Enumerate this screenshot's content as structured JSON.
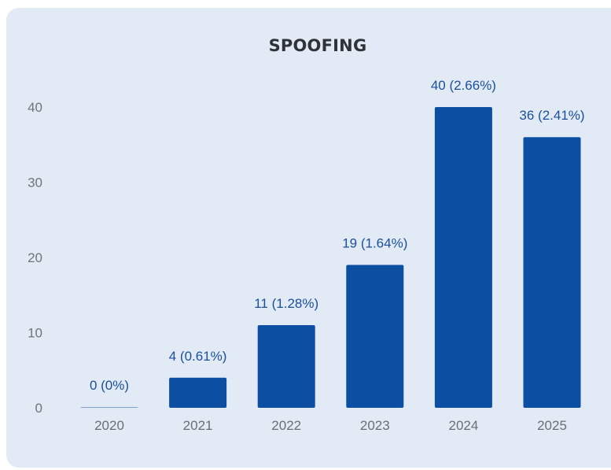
{
  "chart_data": {
    "type": "bar",
    "title": "SPOOFING",
    "xlabel": "",
    "ylabel": "",
    "categories": [
      "2020",
      "2021",
      "2022",
      "2023",
      "2024",
      "2025"
    ],
    "values": [
      0,
      4,
      11,
      19,
      40,
      36
    ],
    "data_labels": [
      "0 (0%)",
      "4 (0.61%)",
      "11 (1.28%)",
      "19 (1.64%)",
      "40 (2.66%)",
      "36 (2.41%)"
    ],
    "y_ticks": [
      "0",
      "10",
      "20",
      "30",
      "40"
    ],
    "ylim": [
      0,
      40
    ],
    "grid": false,
    "legend": "none",
    "colors": {
      "bar": "#0b4ea2",
      "background": "#e2ebf5",
      "title": "#2f3337",
      "data_label": "#1a4f9c"
    }
  }
}
